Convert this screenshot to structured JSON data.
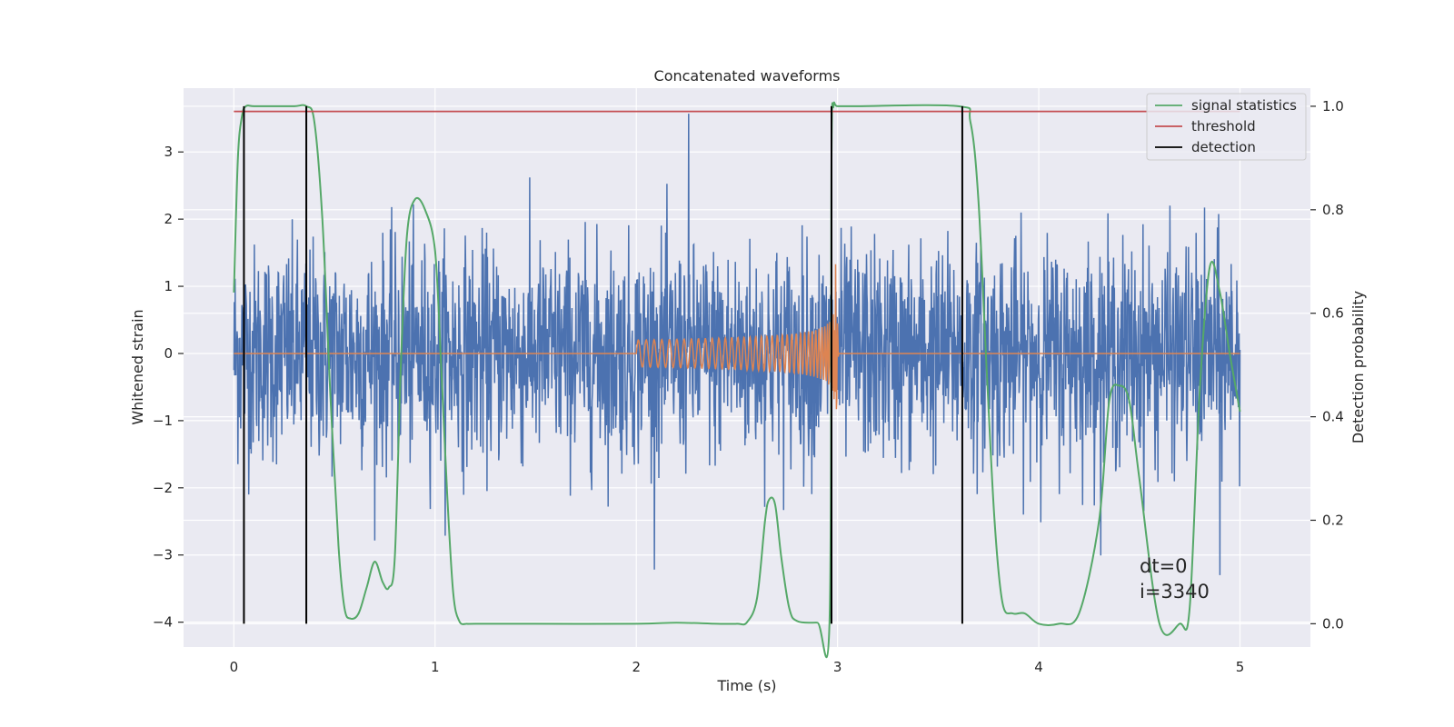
{
  "chart_data": {
    "type": "line",
    "title": "Concatenated waveforms",
    "xlabel": "Time (s)",
    "ylabel": "Whitened strain",
    "ylabel_right": "Detection probability",
    "xlim": [
      -0.25,
      5.35
    ],
    "ylim": [
      -4.37,
      3.95
    ],
    "ylim_right": [
      -0.045,
      1.035
    ],
    "grid": true,
    "legend_position": "top-right",
    "x_ticks": [
      {
        "value": 0,
        "label": "0"
      },
      {
        "value": 1,
        "label": "1"
      },
      {
        "value": 2,
        "label": "2"
      },
      {
        "value": 3,
        "label": "3"
      },
      {
        "value": 4,
        "label": "4"
      },
      {
        "value": 5,
        "label": "5"
      }
    ],
    "y_ticks": [
      {
        "value": 3,
        "label": "3"
      },
      {
        "value": 2,
        "label": "2"
      },
      {
        "value": 1,
        "label": "1"
      },
      {
        "value": 0,
        "label": "0"
      },
      {
        "value": -1,
        "label": "−1"
      },
      {
        "value": -2,
        "label": "−2"
      },
      {
        "value": -3,
        "label": "−3"
      },
      {
        "value": -4,
        "label": "−4"
      }
    ],
    "y_right_ticks": [
      {
        "value": 1.0,
        "label": "1.0"
      },
      {
        "value": 0.8,
        "label": "0.8"
      },
      {
        "value": 0.6,
        "label": "0.6"
      },
      {
        "value": 0.4,
        "label": "0.4"
      },
      {
        "value": 0.2,
        "label": "0.2"
      },
      {
        "value": 0.0,
        "label": "0.0"
      }
    ],
    "noise": {
      "color": "#4c72b0",
      "x_range": [
        0,
        5
      ],
      "sigma": 0.8,
      "peak_values": [
        3.57,
        -3.3
      ]
    },
    "chirp": {
      "color": "#dd8452",
      "x_range": [
        0,
        5
      ],
      "start": 2.0,
      "merger": 2.99,
      "start_amplitude": 0.2,
      "peak_amplitude": 1.4,
      "start_freq_hz": 25
    },
    "series": [
      {
        "name": "signal statistics",
        "color": "#55a868",
        "axis": "right",
        "x": [
          0,
          0.02,
          0.04,
          0.06,
          0.1,
          0.2,
          0.3,
          0.36,
          0.4,
          0.44,
          0.48,
          0.52,
          0.55,
          0.58,
          0.62,
          0.66,
          0.7,
          0.74,
          0.77,
          0.8,
          0.83,
          0.86,
          0.9,
          0.95,
          1.0,
          1.03,
          1.06,
          1.09,
          1.12,
          1.16,
          1.2,
          1.5,
          2.0,
          2.2,
          2.4,
          2.5,
          2.55,
          2.6,
          2.64,
          2.66,
          2.69,
          2.72,
          2.76,
          2.8,
          2.9,
          2.96,
          2.97,
          2.98,
          3.0,
          3.1,
          3.6,
          3.66,
          3.7,
          3.74,
          3.78,
          3.82,
          3.87,
          3.93,
          4.0,
          4.1,
          4.2,
          4.3,
          4.35,
          4.4,
          4.45,
          4.5,
          4.6,
          4.7,
          4.75,
          4.8,
          4.85,
          4.9,
          4.95,
          5.0
        ],
        "values": [
          0.64,
          0.9,
          0.98,
          1.0,
          1.0,
          1.0,
          1.0,
          1.0,
          0.97,
          0.78,
          0.44,
          0.15,
          0.03,
          0.01,
          0.02,
          0.07,
          0.12,
          0.08,
          0.07,
          0.13,
          0.5,
          0.75,
          0.82,
          0.8,
          0.72,
          0.5,
          0.25,
          0.06,
          0.005,
          0.0,
          0.0,
          0.0,
          0.0,
          0.002,
          0.0,
          0.0,
          0.003,
          0.05,
          0.2,
          0.24,
          0.23,
          0.13,
          0.03,
          0.005,
          0.002,
          0.002,
          0.9,
          1.0,
          1.0,
          1.0,
          1.0,
          0.97,
          0.82,
          0.5,
          0.2,
          0.04,
          0.02,
          0.02,
          0.0,
          0.0,
          0.02,
          0.2,
          0.43,
          0.46,
          0.43,
          0.28,
          0.0,
          0.0,
          0.03,
          0.45,
          0.69,
          0.64,
          0.52,
          0.41
        ]
      },
      {
        "name": "threshold",
        "color": "#c44e52",
        "axis": "right",
        "x": [
          0,
          5
        ],
        "values": [
          0.99,
          0.99
        ]
      },
      {
        "name": "detection",
        "color": "#000000",
        "axis": "right",
        "x": [
          0.05,
          0.36,
          2.97,
          3.62
        ],
        "values": [
          1.0,
          1.0,
          1.0,
          1.0
        ]
      }
    ],
    "annotations": [
      "dt=0",
      "i=3340"
    ]
  }
}
